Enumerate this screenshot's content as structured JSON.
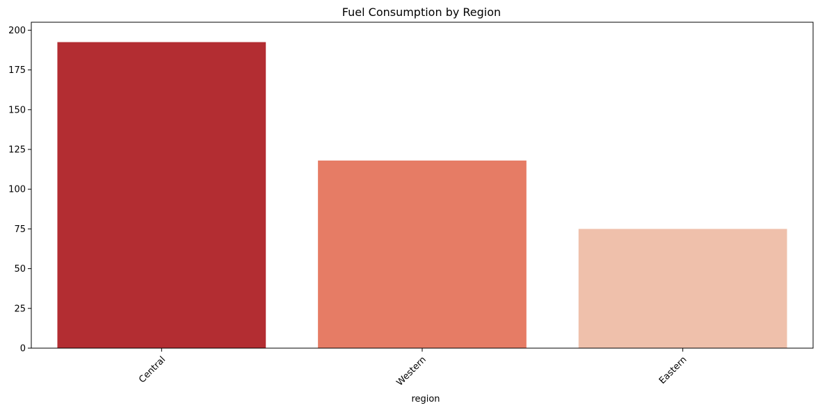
{
  "chart_data": {
    "type": "bar",
    "title": "Fuel Consumption by Region",
    "xlabel": "region",
    "ylabel": "",
    "categories": [
      "Central",
      "Western",
      "Eastern"
    ],
    "values": [
      192.5,
      118.0,
      75.0
    ],
    "colors": [
      "#b32d32",
      "#e67c65",
      "#efc0ab"
    ],
    "ylim": [
      0,
      205
    ],
    "yticks": [
      0,
      25,
      50,
      75,
      100,
      125,
      150,
      175,
      200
    ],
    "xtick_rotation_deg": 45,
    "grid": false,
    "legend": "none"
  }
}
